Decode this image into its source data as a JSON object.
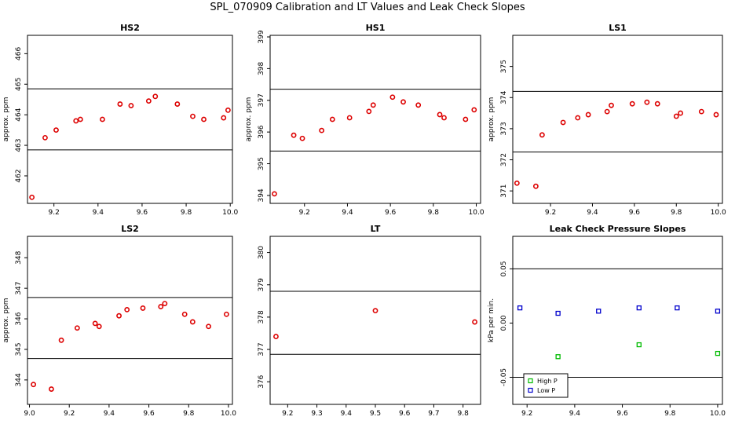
{
  "title": "SPL_070909  Calibration and LT Values and Leak Check Slopes",
  "colors": {
    "point_red": "#dd0000",
    "high_p": "#00bb00",
    "low_p": "#0000cc",
    "line": "#000000"
  },
  "chart_data": [
    {
      "type": "scatter",
      "title": "HS2",
      "ylabel": "approx. ppm",
      "xlim": [
        9.08,
        10.01
      ],
      "ylim": [
        461.1,
        466.6
      ],
      "xticks": [
        9.2,
        9.4,
        9.6,
        9.8,
        10.0
      ],
      "xtick_labels": [
        "9.2",
        "9.4",
        "9.6",
        "9.8",
        "10.0"
      ],
      "yticks": [
        462,
        463,
        464,
        465,
        466
      ],
      "hlines": [
        462.85,
        464.85
      ],
      "series": [
        {
          "x": [
            9.1,
            9.16,
            9.21,
            9.3,
            9.32,
            9.42,
            9.5,
            9.55,
            9.63,
            9.66,
            9.76,
            9.83,
            9.88,
            9.97,
            9.99
          ],
          "y": [
            461.3,
            463.25,
            463.5,
            463.8,
            463.85,
            463.85,
            464.35,
            464.3,
            464.45,
            464.6,
            464.35,
            463.95,
            463.85,
            463.9,
            464.15
          ]
        }
      ]
    },
    {
      "type": "scatter",
      "title": "HS1",
      "ylabel": "approx. ppm",
      "xlim": [
        9.04,
        10.02
      ],
      "ylim": [
        393.75,
        399.05
      ],
      "xticks": [
        9.2,
        9.4,
        9.6,
        9.8,
        10.0
      ],
      "xtick_labels": [
        "9.2",
        "9.4",
        "9.6",
        "9.8",
        "10.0"
      ],
      "yticks": [
        394,
        395,
        396,
        397,
        398,
        399
      ],
      "hlines": [
        395.4,
        397.35
      ],
      "series": [
        {
          "x": [
            9.06,
            9.15,
            9.19,
            9.28,
            9.33,
            9.41,
            9.5,
            9.52,
            9.61,
            9.66,
            9.73,
            9.83,
            9.85,
            9.95,
            9.99
          ],
          "y": [
            394.05,
            395.9,
            395.8,
            396.05,
            396.4,
            396.45,
            396.65,
            396.85,
            397.1,
            396.95,
            396.85,
            396.55,
            396.45,
            396.4,
            396.7
          ]
        }
      ]
    },
    {
      "type": "scatter",
      "title": "LS1",
      "ylabel": "approx. ppm",
      "xlim": [
        9.02,
        10.02
      ],
      "ylim": [
        370.6,
        376.0
      ],
      "xticks": [
        9.2,
        9.4,
        9.6,
        9.8,
        10.0
      ],
      "xtick_labels": [
        "9.2",
        "9.4",
        "9.6",
        "9.8",
        "10.0"
      ],
      "yticks": [
        371,
        372,
        373,
        374,
        375
      ],
      "hlines": [
        372.25,
        374.2
      ],
      "series": [
        {
          "x": [
            9.04,
            9.13,
            9.16,
            9.26,
            9.33,
            9.38,
            9.47,
            9.49,
            9.59,
            9.66,
            9.71,
            9.8,
            9.82,
            9.92,
            9.99
          ],
          "y": [
            371.25,
            371.15,
            372.8,
            373.2,
            373.35,
            373.45,
            373.55,
            373.75,
            373.8,
            373.85,
            373.8,
            373.4,
            373.5,
            373.55,
            373.45
          ]
        }
      ]
    },
    {
      "type": "scatter",
      "title": "LS2",
      "ylabel": "approx. ppm",
      "xlim": [
        8.99,
        10.02
      ],
      "ylim": [
        343.2,
        348.7
      ],
      "xticks": [
        9.0,
        9.2,
        9.4,
        9.6,
        9.8,
        10.0
      ],
      "xtick_labels": [
        "9.0",
        "9.2",
        "9.4",
        "9.6",
        "9.8",
        "10.0"
      ],
      "yticks": [
        344,
        345,
        346,
        347,
        348
      ],
      "hlines": [
        344.7,
        346.7
      ],
      "series": [
        {
          "x": [
            9.02,
            9.11,
            9.16,
            9.24,
            9.33,
            9.35,
            9.45,
            9.49,
            9.57,
            9.66,
            9.68,
            9.78,
            9.82,
            9.9,
            9.99
          ],
          "y": [
            343.85,
            343.7,
            345.3,
            345.7,
            345.85,
            345.75,
            346.1,
            346.3,
            346.35,
            346.4,
            346.5,
            346.15,
            345.9,
            345.75,
            346.15
          ]
        }
      ]
    },
    {
      "type": "scatter",
      "title": "LT",
      "ylabel": "",
      "xlim": [
        9.14,
        9.86
      ],
      "ylim": [
        375.3,
        380.5
      ],
      "xticks": [
        9.2,
        9.3,
        9.4,
        9.5,
        9.6,
        9.7,
        9.8
      ],
      "xtick_labels": [
        "9.2",
        "9.3",
        "9.4",
        "9.5",
        "9.6",
        "9.7",
        "9.8"
      ],
      "yticks": [
        376,
        377,
        378,
        379,
        380
      ],
      "hlines": [
        376.85,
        378.8
      ],
      "series": [
        {
          "x": [
            9.16,
            9.5,
            9.84
          ],
          "y": [
            377.4,
            378.2,
            377.85
          ]
        }
      ]
    },
    {
      "type": "scatter",
      "title": "Leak Check Pressure Slopes",
      "ylabel": "kPa per min.",
      "xlim": [
        9.14,
        10.02
      ],
      "ylim": [
        -0.075,
        0.08
      ],
      "xticks": [
        9.2,
        9.4,
        9.6,
        9.8,
        10.0
      ],
      "xtick_labels": [
        "9.2",
        "9.4",
        "9.6",
        "9.8",
        "10.0"
      ],
      "yticks": [
        -0.05,
        0.0,
        0.05
      ],
      "ytick_labels": [
        "-0.05",
        "0.00",
        "0.05"
      ],
      "hlines": [
        -0.05,
        0.05
      ],
      "legend": {
        "position": "bottom-left",
        "entries": [
          "High P",
          "Low P"
        ]
      },
      "series": [
        {
          "name": "High P",
          "color": "#00bb00",
          "x": [
            9.33,
            9.67,
            10.0
          ],
          "y": [
            -0.031,
            -0.02,
            -0.028
          ]
        },
        {
          "name": "Low P",
          "color": "#0000cc",
          "x": [
            9.17,
            9.33,
            9.5,
            9.67,
            9.83,
            10.0
          ],
          "y": [
            0.014,
            0.009,
            0.011,
            0.014,
            0.014,
            0.011
          ]
        }
      ]
    }
  ]
}
